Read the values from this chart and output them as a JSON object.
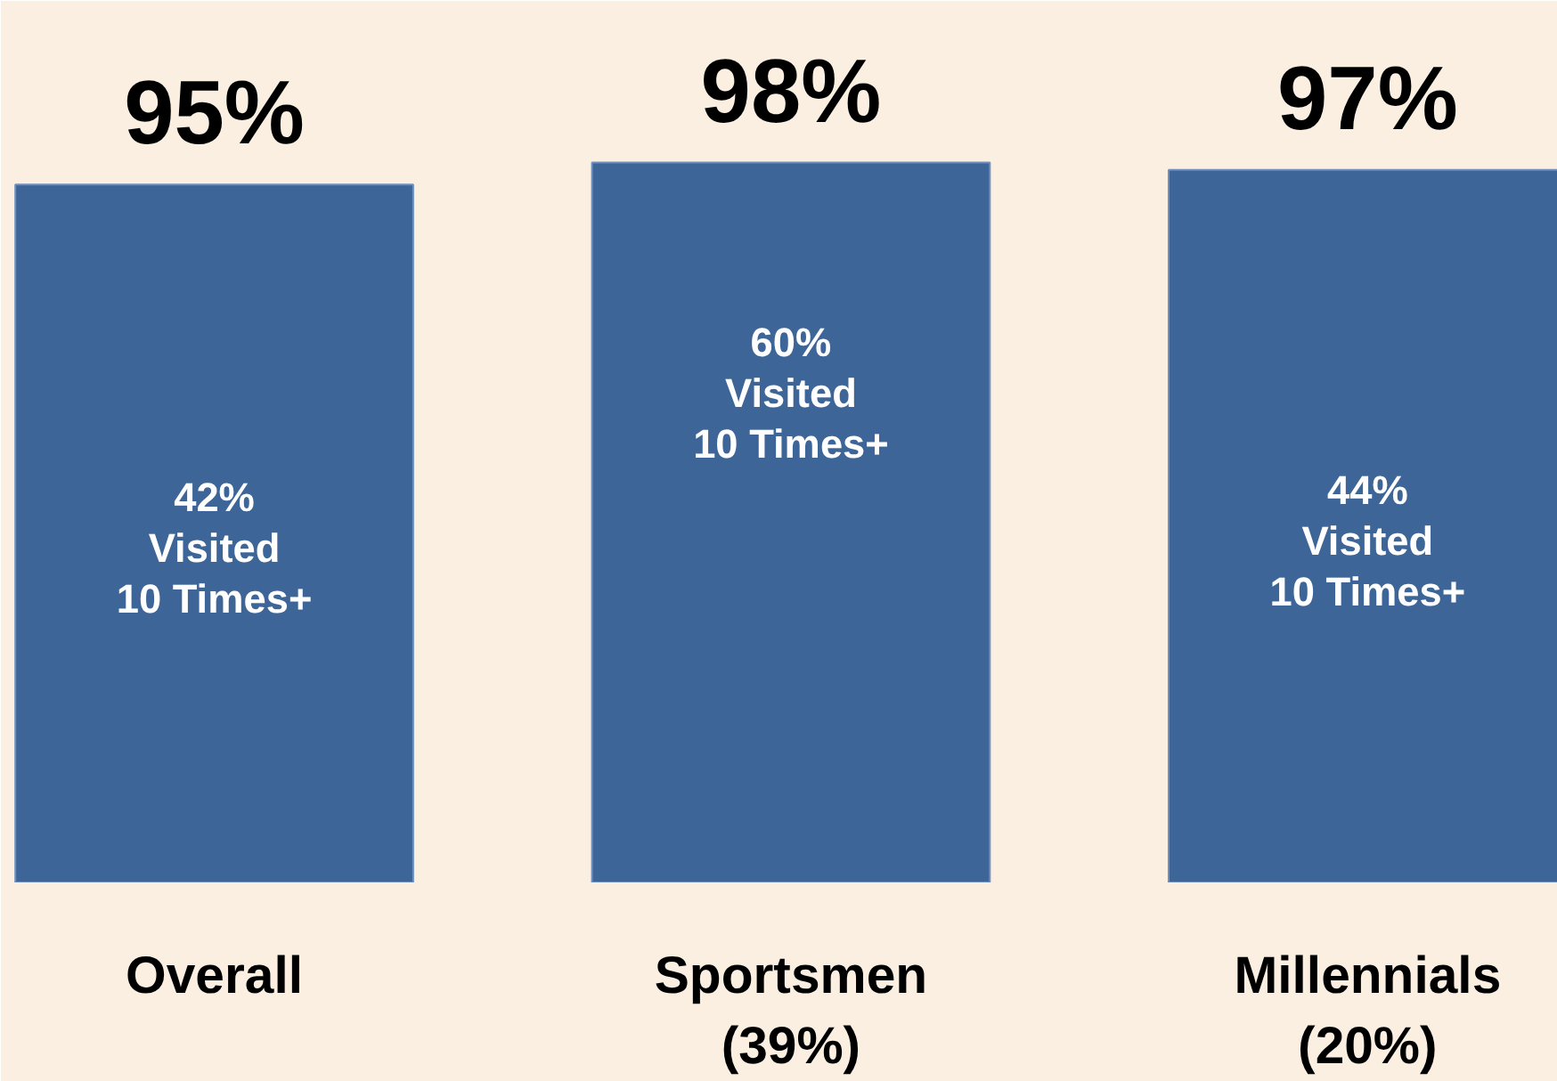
{
  "chart_data": {
    "type": "bar",
    "categories": [
      "Overall",
      "Sportsmen\n(39%)",
      "Millennials\n(20%)"
    ],
    "values": [
      95,
      98,
      97
    ],
    "value_labels": [
      "95%",
      "98%",
      "97%"
    ],
    "color": "#3d6597",
    "ylim": [
      0,
      120
    ],
    "grid": false,
    "annotations": [
      "42%\nVisited\n10 Times+",
      "60%\nVisited\n10 Times+",
      "44%\nVisited\n10 Times+"
    ]
  }
}
